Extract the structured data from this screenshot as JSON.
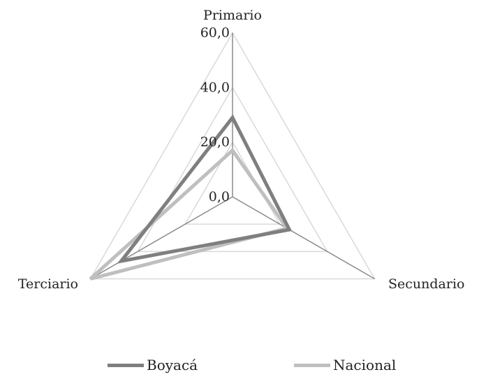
{
  "chart_data": {
    "type": "radar",
    "axes": [
      "Primario",
      "Secundario",
      "Terciario"
    ],
    "rlim": [
      0,
      60
    ],
    "ticks": [
      "0,0",
      "20,0",
      "40,0",
      "60,0"
    ],
    "tick_values": [
      0,
      20,
      40,
      60
    ],
    "grid": true,
    "legend": "bottom",
    "series": [
      {
        "name": "Boyacá",
        "values": [
          29,
          24,
          47
        ],
        "color": "#7f7f7f"
      },
      {
        "name": "Nacional",
        "values": [
          17,
          23,
          60
        ],
        "color": "#bfbfbf"
      }
    ]
  }
}
